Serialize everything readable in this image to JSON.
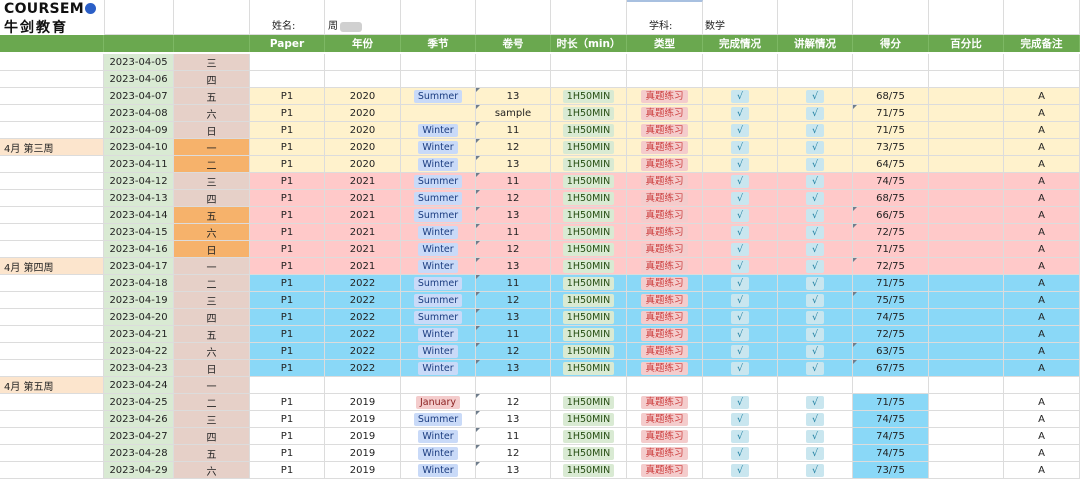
{
  "logo": {
    "brand_prefix": "COURSEM",
    "brand_suffix": "O",
    "name_cn": "牛剑教育"
  },
  "info": {
    "name_label": "姓名:",
    "name_value": "周",
    "subject_label": "学科:",
    "subject_value": "数学"
  },
  "headers": [
    "Paper",
    "年份",
    "季节",
    "卷号",
    "时长（min）",
    "类型",
    "完成情况",
    "讲解情况",
    "得分",
    "百分比",
    "完成备注"
  ],
  "colors": {
    "header_green": "#6aa84f",
    "date_bg": "#d9ead3",
    "weekday_bg": "#e6d0c8",
    "weekday_highlight": "#f6b26b",
    "week_label_bg": "#fce5cd",
    "band_yellow": "#fff2cc",
    "band_pink": "#ffc9c9",
    "band_blue": "#8ad8f7",
    "score_blue": "#8ad8f7"
  },
  "rows": [
    {
      "week": "",
      "date": "2023-04-05",
      "weekday": "三",
      "band": "none"
    },
    {
      "week": "",
      "date": "2023-04-06",
      "weekday": "四",
      "band": "none"
    },
    {
      "week": "",
      "date": "2023-04-07",
      "weekday": "五",
      "band": "yellow",
      "paper": "P1",
      "year": "2020",
      "season": "Summer",
      "vol": "13",
      "dur": "1H50MIN",
      "type": "真题练习",
      "done": "√",
      "exp": "√",
      "score": "68/75",
      "pct": "",
      "note": "A"
    },
    {
      "week": "",
      "date": "2023-04-08",
      "weekday": "六",
      "band": "yellow",
      "paper": "P1",
      "year": "2020",
      "season": "",
      "vol": "sample",
      "dur": "1H50MIN",
      "type": "真题练习",
      "done": "√",
      "exp": "√",
      "score": "71/75",
      "pct": "",
      "note": "A"
    },
    {
      "week": "",
      "date": "2023-04-09",
      "weekday": "日",
      "band": "yellow",
      "paper": "P1",
      "year": "2020",
      "season": "Winter",
      "vol": "11",
      "dur": "1H50MIN",
      "type": "真题练习",
      "done": "√",
      "exp": "√",
      "score": "71/75",
      "pct": "",
      "note": "A"
    },
    {
      "week": "4月  第三周",
      "date": "2023-04-10",
      "weekday": "一",
      "band": "yellow",
      "paper": "P1",
      "year": "2020",
      "season": "Winter",
      "vol": "12",
      "dur": "1H50MIN",
      "type": "真题练习",
      "done": "√",
      "exp": "√",
      "score": "73/75",
      "pct": "",
      "note": "A"
    },
    {
      "week": "",
      "date": "2023-04-11",
      "weekday": "二",
      "band": "yellow",
      "paper": "P1",
      "year": "2020",
      "season": "Winter",
      "vol": "13",
      "dur": "1H50MIN",
      "type": "真题练习",
      "done": "√",
      "exp": "√",
      "score": "64/75",
      "pct": "",
      "note": "A"
    },
    {
      "week": "",
      "date": "2023-04-12",
      "weekday": "三",
      "band": "pink",
      "paper": "P1",
      "year": "2021",
      "season": "Summer",
      "vol": "11",
      "dur": "1H50MIN",
      "type": "真题练习",
      "done": "√",
      "exp": "√",
      "score": "74/75",
      "pct": "",
      "note": "A"
    },
    {
      "week": "",
      "date": "2023-04-13",
      "weekday": "四",
      "band": "pink",
      "paper": "P1",
      "year": "2021",
      "season": "Summer",
      "vol": "12",
      "dur": "1H50MIN",
      "type": "真题练习",
      "done": "√",
      "exp": "√",
      "score": "68/75",
      "pct": "",
      "note": "A"
    },
    {
      "week": "",
      "date": "2023-04-14",
      "weekday": "五",
      "band": "pink",
      "paper": "P1",
      "year": "2021",
      "season": "Summer",
      "vol": "13",
      "dur": "1H50MIN",
      "type": "真题练习",
      "done": "√",
      "exp": "√",
      "score": "66/75",
      "pct": "",
      "note": "A"
    },
    {
      "week": "",
      "date": "2023-04-15",
      "weekday": "六",
      "band": "pink",
      "paper": "P1",
      "year": "2021",
      "season": "Winter",
      "vol": "11",
      "dur": "1H50MIN",
      "type": "真题练习",
      "done": "√",
      "exp": "√",
      "score": "72/75",
      "pct": "",
      "note": "A"
    },
    {
      "week": "",
      "date": "2023-04-16",
      "weekday": "日",
      "band": "pink",
      "paper": "P1",
      "year": "2021",
      "season": "Winter",
      "vol": "12",
      "dur": "1H50MIN",
      "type": "真题练习",
      "done": "√",
      "exp": "√",
      "score": "71/75",
      "pct": "",
      "note": "A"
    },
    {
      "week": "4月  第四周",
      "date": "2023-04-17",
      "weekday": "一",
      "band": "pink",
      "paper": "P1",
      "year": "2021",
      "season": "Winter",
      "vol": "13",
      "dur": "1H50MIN",
      "type": "真题练习",
      "done": "√",
      "exp": "√",
      "score": "72/75",
      "pct": "",
      "note": "A"
    },
    {
      "week": "",
      "date": "2023-04-18",
      "weekday": "二",
      "band": "blue",
      "paper": "P1",
      "year": "2022",
      "season": "Summer",
      "vol": "11",
      "dur": "1H50MIN",
      "type": "真题练习",
      "done": "√",
      "exp": "√",
      "score": "71/75",
      "pct": "",
      "note": "A"
    },
    {
      "week": "",
      "date": "2023-04-19",
      "weekday": "三",
      "band": "blue",
      "paper": "P1",
      "year": "2022",
      "season": "Summer",
      "vol": "12",
      "dur": "1H50MIN",
      "type": "真题练习",
      "done": "√",
      "exp": "√",
      "score": "75/75",
      "pct": "",
      "note": "A"
    },
    {
      "week": "",
      "date": "2023-04-20",
      "weekday": "四",
      "band": "blue",
      "paper": "P1",
      "year": "2022",
      "season": "Summer",
      "vol": "13",
      "dur": "1H50MIN",
      "type": "真题练习",
      "done": "√",
      "exp": "√",
      "score": "74/75",
      "pct": "",
      "note": "A"
    },
    {
      "week": "",
      "date": "2023-04-21",
      "weekday": "五",
      "band": "blue",
      "paper": "P1",
      "year": "2022",
      "season": "Winter",
      "vol": "11",
      "dur": "1H50MIN",
      "type": "真题练习",
      "done": "√",
      "exp": "√",
      "score": "72/75",
      "pct": "",
      "note": "A"
    },
    {
      "week": "",
      "date": "2023-04-22",
      "weekday": "六",
      "band": "blue",
      "paper": "P1",
      "year": "2022",
      "season": "Winter",
      "vol": "12",
      "dur": "1H50MIN",
      "type": "真题练习",
      "done": "√",
      "exp": "√",
      "score": "63/75",
      "pct": "",
      "note": "A"
    },
    {
      "week": "",
      "date": "2023-04-23",
      "weekday": "日",
      "band": "blue",
      "paper": "P1",
      "year": "2022",
      "season": "Winter",
      "vol": "13",
      "dur": "1H50MIN",
      "type": "真题练习",
      "done": "√",
      "exp": "√",
      "score": "67/75",
      "pct": "",
      "note": "A"
    },
    {
      "week": "4月  第五周",
      "date": "2023-04-24",
      "weekday": "一",
      "band": "none"
    },
    {
      "week": "",
      "date": "2023-04-25",
      "weekday": "二",
      "band": "white",
      "paper": "P1",
      "year": "2019",
      "season": "January",
      "vol": "12",
      "dur": "1H50MIN",
      "type": "真题练习",
      "done": "√",
      "exp": "√",
      "score": "71/75",
      "pct": "",
      "note": "A"
    },
    {
      "week": "",
      "date": "2023-04-26",
      "weekday": "三",
      "band": "white",
      "paper": "P1",
      "year": "2019",
      "season": "Summer",
      "vol": "13",
      "dur": "1H50MIN",
      "type": "真题练习",
      "done": "√",
      "exp": "√",
      "score": "74/75",
      "pct": "",
      "note": "A"
    },
    {
      "week": "",
      "date": "2023-04-27",
      "weekday": "四",
      "band": "white",
      "paper": "P1",
      "year": "2019",
      "season": "Winter",
      "vol": "11",
      "dur": "1H50MIN",
      "type": "真题练习",
      "done": "√",
      "exp": "√",
      "score": "74/75",
      "pct": "",
      "note": "A"
    },
    {
      "week": "",
      "date": "2023-04-28",
      "weekday": "五",
      "band": "white",
      "paper": "P1",
      "year": "2019",
      "season": "Winter",
      "vol": "12",
      "dur": "1H50MIN",
      "type": "真题练习",
      "done": "√",
      "exp": "√",
      "score": "74/75",
      "pct": "",
      "note": "A"
    },
    {
      "week": "",
      "date": "2023-04-29",
      "weekday": "六",
      "band": "white",
      "paper": "P1",
      "year": "2019",
      "season": "Winter",
      "vol": "13",
      "dur": "1H50MIN",
      "type": "真题练习",
      "done": "√",
      "exp": "√",
      "score": "73/75",
      "pct": "",
      "note": "A"
    }
  ]
}
